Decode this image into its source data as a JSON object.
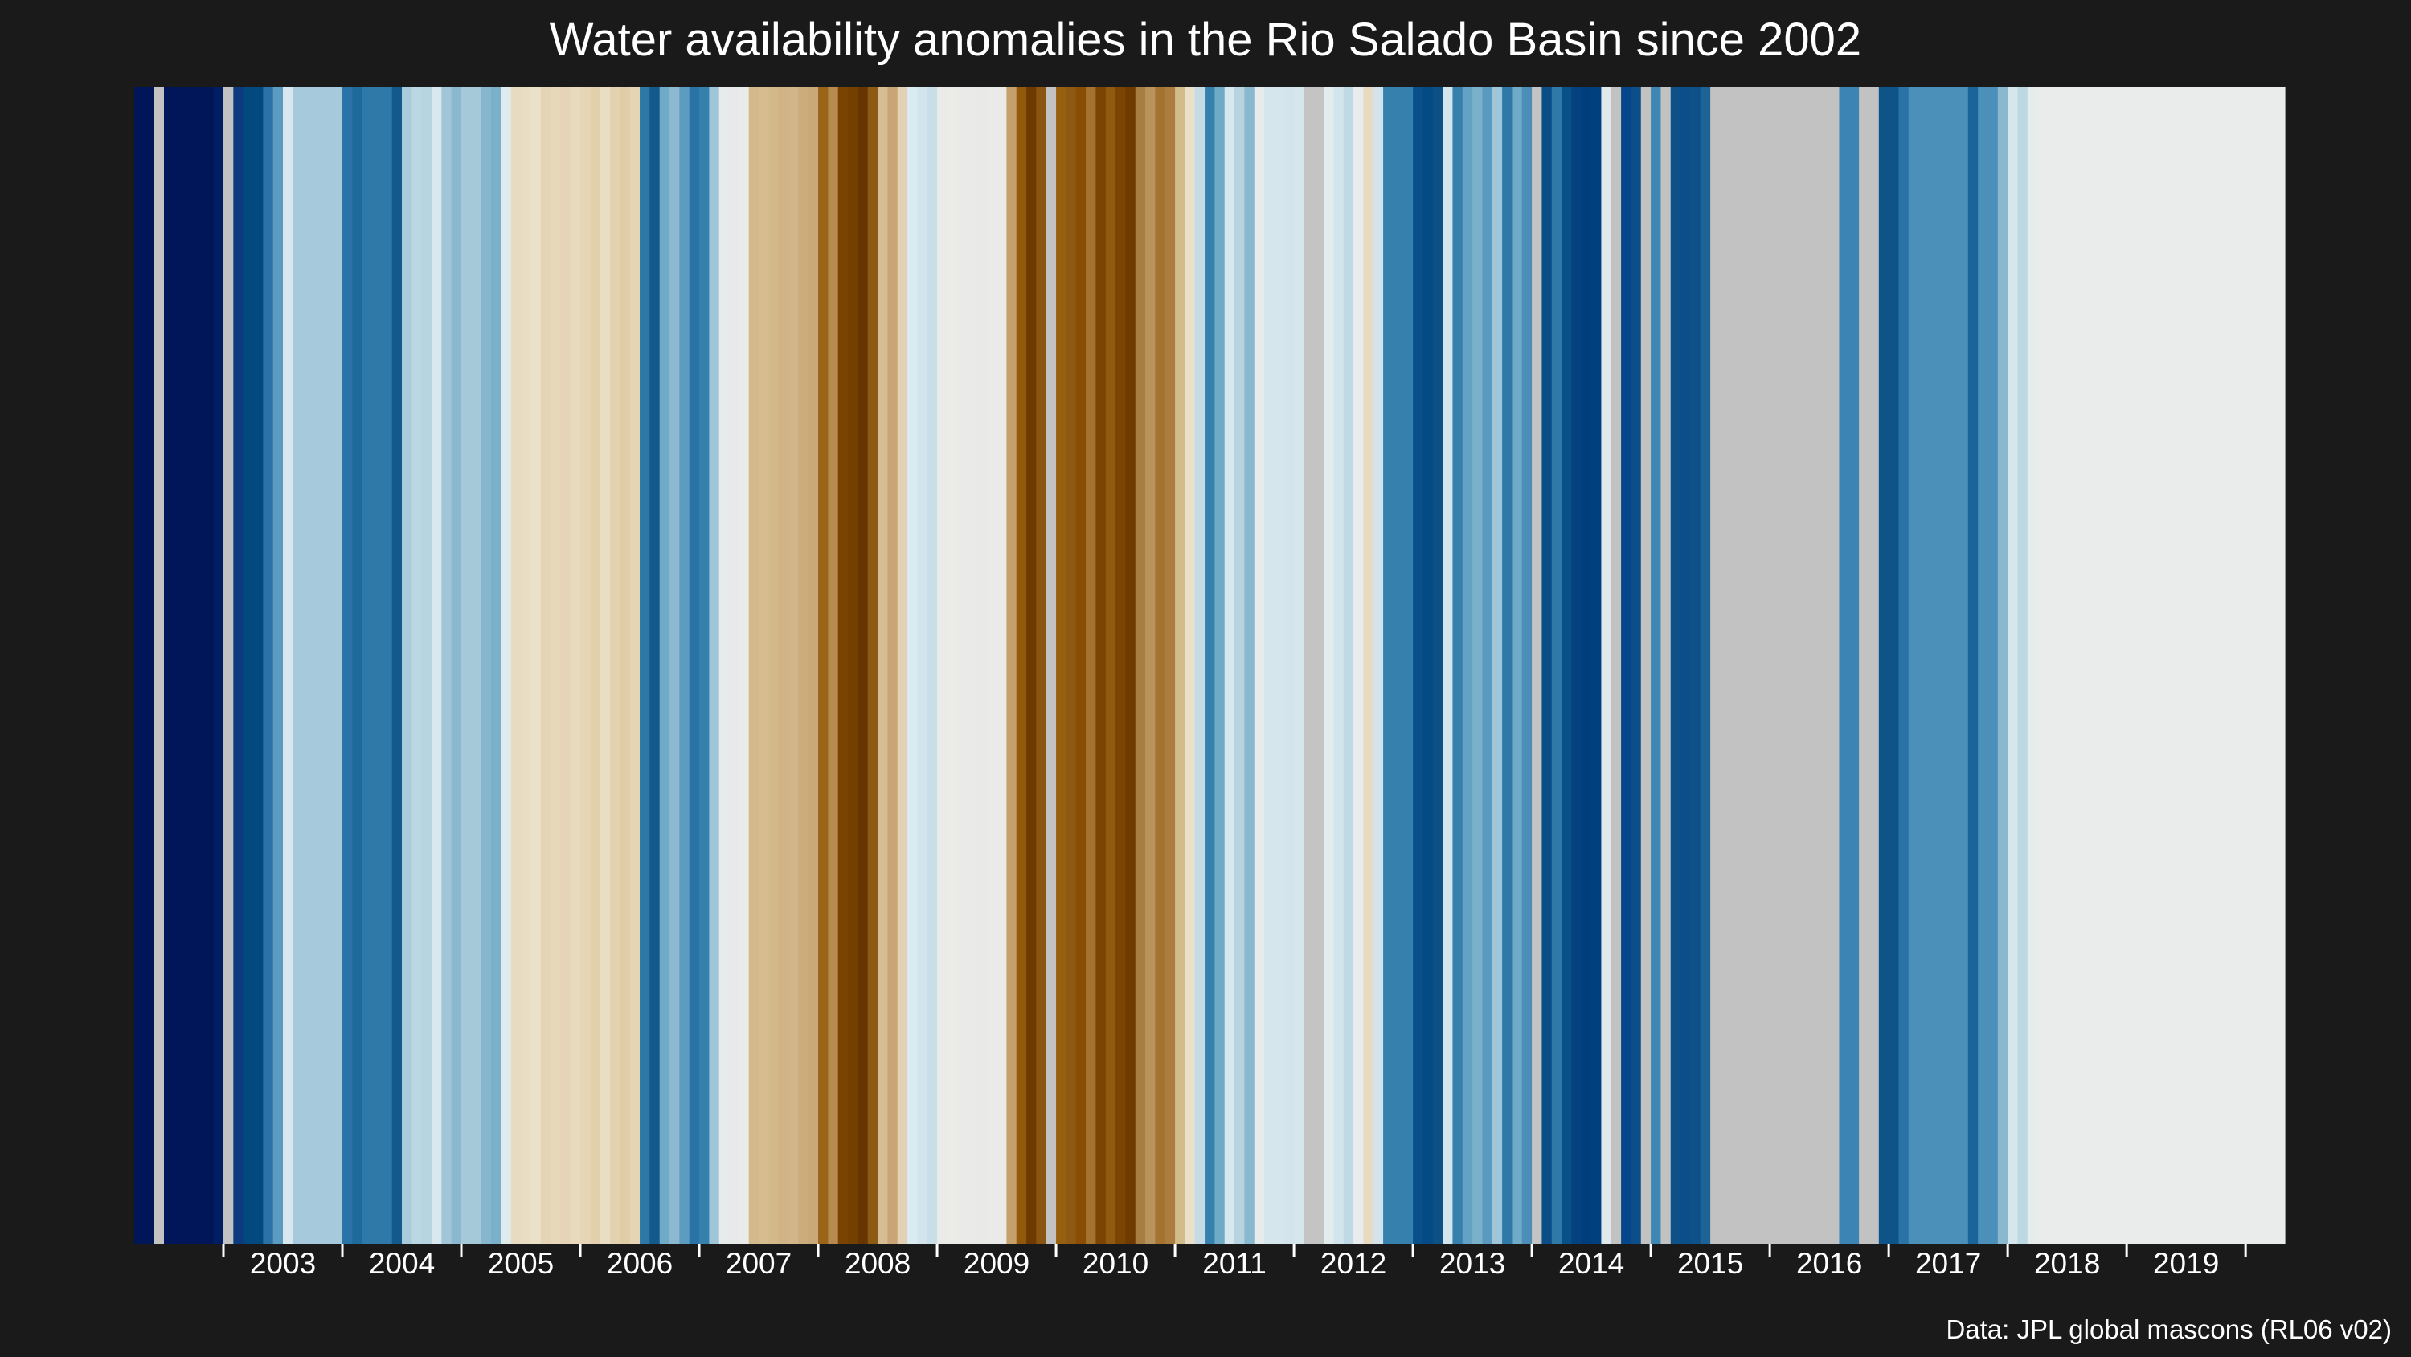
{
  "title": "Water availability anomalies in the Rio Salado Basin since 2002",
  "caption": "Data: JPL global mascons (RL06 v02)",
  "chart_data": {
    "type": "heatmap",
    "title": "Water availability anomalies in the Rio Salado Basin since 2002",
    "caption": "Data: JPL global mascons (RL06 v02)",
    "x_range": [
      2002.25,
      2020.33
    ],
    "tick_labels": [
      "2003",
      "2004",
      "2005",
      "2006",
      "2007",
      "2008",
      "2009",
      "2010",
      "2011",
      "2012",
      "2013",
      "2014",
      "2015",
      "2016",
      "2017",
      "2018",
      "2019"
    ],
    "tick_years": [
      2003,
      2004,
      2005,
      2006,
      2007,
      2008,
      2009,
      2010,
      2011,
      2012,
      2013,
      2014,
      2015,
      2016,
      2017,
      2018,
      2019,
      2020
    ],
    "missing_color": "#c2c2c2",
    "background": "#1a1a1a",
    "stripes": [
      [
        "#011559",
        "#011559",
        "#c2c2c2",
        "#011559",
        "#011559",
        "#011559",
        "#011559",
        "#011559",
        "#011e63"
      ],
      [
        "#c2c2c2",
        "#0b3b7e",
        "#01497f",
        "#01497f",
        "#2a73a6",
        "#5b9bc1",
        "#d8e8ef",
        "#a6cadb"
      ],
      [
        "#2a73a6",
        "#1e6a9b",
        "#2e79a8",
        "#2e79a8",
        "#2e79a8",
        "#14598c",
        "#a9ccdd",
        "#bbd7e3",
        "#b7d4e1",
        "#d9e8ee",
        "#a0c6d8",
        "#8ab8cf"
      ],
      [
        "#a6c9da",
        "#a6c9da",
        "#87b6ce",
        "#7bb0ca",
        "#e0ebee",
        "#e7dcc3",
        "#e9ddc3",
        "#ebe1c9",
        "#e5d5b7",
        "#e7d8ba",
        "#e5d4b5",
        "#e8dbbd"
      ],
      [
        "#e6d6b7",
        "#e2d0ad",
        "#e9dec4",
        "#e3d2b0",
        "#e0cca7",
        "#e6d5b5",
        "#2e78a7",
        "#14598c",
        "#6faac7",
        "#8cb9d0",
        "#5c9cc0",
        "#2a73a6"
      ],
      [
        "#3580ad",
        "#9ec5d8",
        "#e6ecec",
        "#e8eaea",
        "#eaecec",
        "#d4b98a",
        "#d6bd90",
        "#d3b88a",
        "#d1b387",
        "#d2b588",
        "#ccac7a",
        "#c9a97a"
      ],
      [
        "#9a6518",
        "#b78b4e",
        "#7a4302",
        "#744000",
        "#663500",
        "#8c5a13",
        "#d6be94",
        "#c8a476",
        "#e2d1b2",
        "#d9ecf2",
        "#d3e4ec",
        "#c9dfe8"
      ],
      [
        "#eaebe8",
        "#ebebe8",
        "#e9ebe8",
        "#eaebe8",
        "#e9eae7",
        "#eaebe8",
        "#eaebe8",
        "#c6a06a",
        "#92590c",
        "#6e3a00",
        "#8a5510",
        "#c2c2c2"
      ],
      [
        "#976010",
        "#8e5a12",
        "#894e03",
        "#a57330",
        "#7b4402",
        "#905a10",
        "#7b4402",
        "#6e3a00",
        "#a87d41",
        "#b8945c",
        "#a57330",
        "#ab7e40"
      ],
      [
        "#d1bc8a",
        "#eae0c8",
        "#c4dbe6",
        "#3580ad",
        "#6faac7",
        "#d7e7ee",
        "#b6d3e0",
        "#8ab8cf",
        "#e6ecec",
        "#d7e6ed",
        "#d6e6ed",
        "#d3e4ec"
      ],
      [
        "#d5e6ed",
        "#c4c4c4",
        "#c4c4c4",
        "#e2ebed",
        "#d2e5ec",
        "#c0dae5",
        "#e9ecec",
        "#e8dac1",
        "#d2e3eb",
        "#3580ad",
        "#3580ad",
        "#3580ad"
      ],
      [
        "#0a4f89",
        "#044a84",
        "#0d5085",
        "#d4e6ed",
        "#3580ad",
        "#63a2c4",
        "#7bb0ca",
        "#5a9ac0",
        "#9ec5d8",
        "#2e79a8",
        "#6faac7",
        "#4c8eb8"
      ],
      [
        "#c4c4c4",
        "#0b4d87",
        "#2e79a8",
        "#075188",
        "#03427f",
        "#003d7c",
        "#00407e",
        "#dfe9ec",
        "#c2c2c2",
        "#05468a",
        "#0c4e88",
        "#c2c2c2"
      ],
      [
        "#3d87b5",
        "#c2c2c2",
        "#0e5188",
        "#0a4f89",
        "#0d5188",
        "#1d6396",
        "#c2c2c2",
        "#c2c2c2",
        "#c2c2c2",
        "#c2c2c2",
        "#c2c2c2",
        "#c2c2c2"
      ],
      [
        "#c2c2c2",
        "#c2c2c2",
        "#c2c2c2",
        "#c2c2c2",
        "#c2c2c2",
        "#c2c2c2",
        "#c2c2c2",
        "#3b84b3",
        "#3b84b3",
        "#c2c2c2",
        "#c2c2c2",
        "#0e5489"
      ],
      [
        "#0e5489",
        "#2a73a6",
        "#4a90b9",
        "#4a90b9",
        "#4a90b9",
        "#4a90b9",
        "#4a90b9",
        "#4a90b9",
        "#1a6499",
        "#4a90b9",
        "#4a90b9",
        "#8ab8cf"
      ],
      [
        "#d5e6ed",
        "#bcd8e3",
        "#e6ecec",
        "#eaecec"
      ]
    ]
  }
}
